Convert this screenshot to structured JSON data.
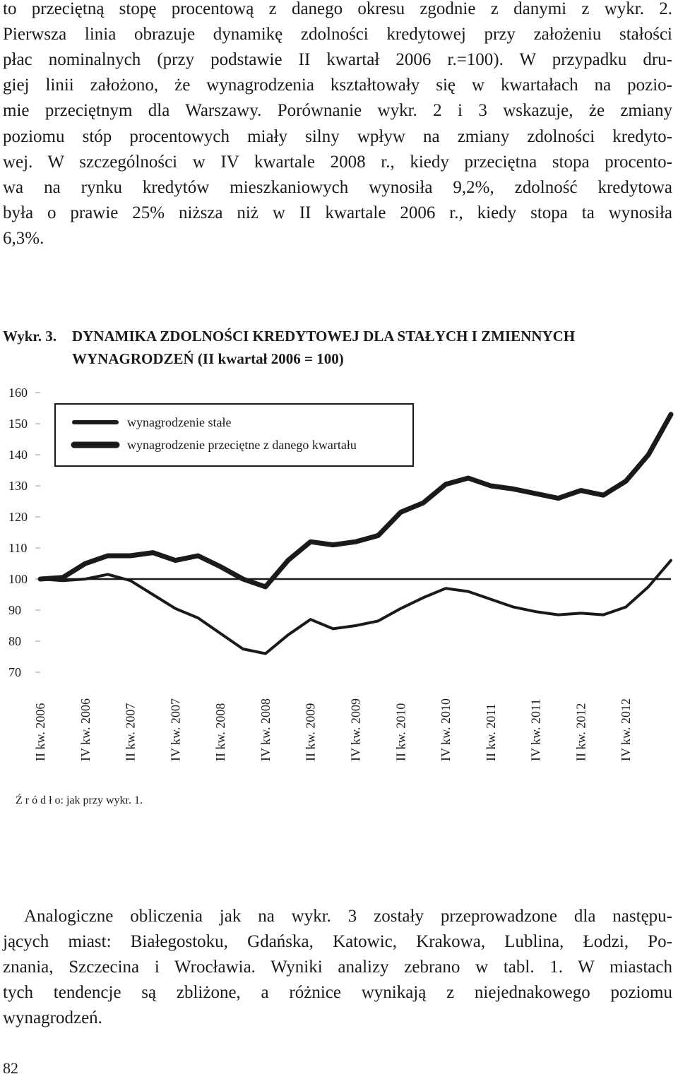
{
  "paragraph_top": [
    "to przeciętną stopę procentową z danego okresu zgodnie z danymi z wykr. 2.",
    "Pierwsza linia obrazuje dynamikę zdolności kredytowej przy założeniu stałości",
    "płac nominalnych (przy podstawie II kwartał 2006 r.=100). W przypadku dru-",
    "giej linii założono, że wynagrodzenia kształtowały się w kwartałach na pozio-",
    "mie przeciętnym dla Warszawy. Porównanie wykr. 2 i 3 wskazuje, że zmiany",
    "poziomu stóp procentowych miały silny wpływ na zmiany zdolności kredyto-",
    "wej. W szczególności w IV kwartale 2008 r., kiedy przeciętna stopa procento-",
    "wa na rynku kredytów mieszkaniowych wynosiła 9,2%, zdolność kredytowa",
    "była o prawie 25% niższa niż w II kwartale 2006 r., kiedy stopa ta wynosiła",
    "6,3%."
  ],
  "chart_data": {
    "type": "line",
    "label": "Wykr. 3.",
    "title": [
      "DYNAMIKA ZDOLNOŚCI KREDYTOWEJ DLA STAŁYCH I ZMIENNYCH",
      "WYNAGRODZEŃ (II kwartał 2006 = 100)"
    ],
    "categories": [
      "II kw. 2006",
      null,
      "IV kw. 2006",
      null,
      "II kw. 2007",
      null,
      "IV kw. 2007",
      null,
      "II kw. 2008",
      null,
      "IV kw. 2008",
      null,
      "II kw. 2009",
      null,
      "IV kw. 2009",
      null,
      "II kw. 2010",
      null,
      "IV kw. 2010",
      null,
      "II kw. 2011",
      null,
      "IV kw. 2011",
      null,
      "II kw. 2012",
      null,
      "IV kw. 2012",
      null,
      null
    ],
    "series": [
      {
        "name": "wynagrodzenie stałe",
        "color": "#1a1a1a",
        "values": [
          100,
          99.5,
          100,
          101.5,
          99.5,
          95,
          90.5,
          87.5,
          82.5,
          77.5,
          76,
          82,
          87,
          84,
          85,
          86.5,
          90.5,
          94,
          97,
          96,
          93.5,
          91,
          89.5,
          88.5,
          89,
          88.5,
          91,
          97.5,
          106
        ]
      },
      {
        "name": "wynagrodzenie przeciętne z danego kwartału",
        "color": "#1a1a1a",
        "values": [
          100,
          100.5,
          105,
          107.5,
          107.5,
          108.5,
          106,
          107.5,
          104,
          100,
          97.5,
          106,
          112,
          111,
          112,
          114,
          121.5,
          124.5,
          130.5,
          132.5,
          130,
          129,
          127.5,
          126,
          128.5,
          127,
          131.5,
          140,
          153
        ]
      }
    ],
    "reference_line": 100,
    "ylim": [
      70,
      160
    ],
    "yticks": [
      70,
      80,
      90,
      100,
      110,
      120,
      130,
      140,
      150,
      160
    ],
    "legend": "top-left",
    "source": "Ź r ó d ł o: jak przy wykr. 1."
  },
  "paragraph_bottom": [
    "Analogiczne obliczenia jak na wykr. 3 zostały przeprowadzone dla następu-",
    "jących miast: Białegostoku, Gdańska, Katowic, Krakowa, Lublina, Łodzi, Po-",
    "znania, Szczecina i Wrocławia. Wyniki analizy zebrano w tabl. 1. W miastach",
    "tych tendencje są zbliżone, a różnice wynikają z niejednakowego poziomu",
    "wynagrodzeń."
  ],
  "page_number": "82"
}
